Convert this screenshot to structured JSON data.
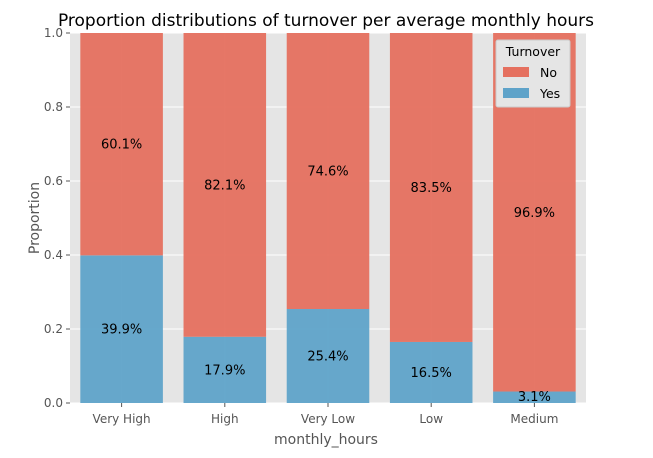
{
  "chart_data": {
    "type": "bar",
    "stacked": true,
    "normalized": true,
    "title": "Proportion distributions of turnover per average monthly hours",
    "xlabel": "monthly_hours",
    "ylabel": "Proportion",
    "ylim": [
      0,
      1.0
    ],
    "yticks": [
      "0.0",
      "0.2",
      "0.4",
      "0.6",
      "0.8",
      "1.0"
    ],
    "grid": true,
    "categories": [
      "Very High",
      "High",
      "Very Low",
      "Low",
      "Medium"
    ],
    "series": [
      {
        "name": "No",
        "values": [
          0.601,
          0.821,
          0.746,
          0.835,
          0.969
        ],
        "labels": [
          "60.1%",
          "82.1%",
          "74.6%",
          "83.5%",
          "96.9%"
        ],
        "color": "#e5705f"
      },
      {
        "name": "Yes",
        "values": [
          0.399,
          0.179,
          0.254,
          0.165,
          0.031
        ],
        "labels": [
          "39.9%",
          "17.9%",
          "25.4%",
          "16.5%",
          "3.1%"
        ],
        "color": "#5fa3c9"
      }
    ],
    "legend": {
      "title": "Turnover",
      "placement": "top-right"
    },
    "colors": {
      "background": "#e5e5e5",
      "grid": "#ffffff"
    }
  }
}
